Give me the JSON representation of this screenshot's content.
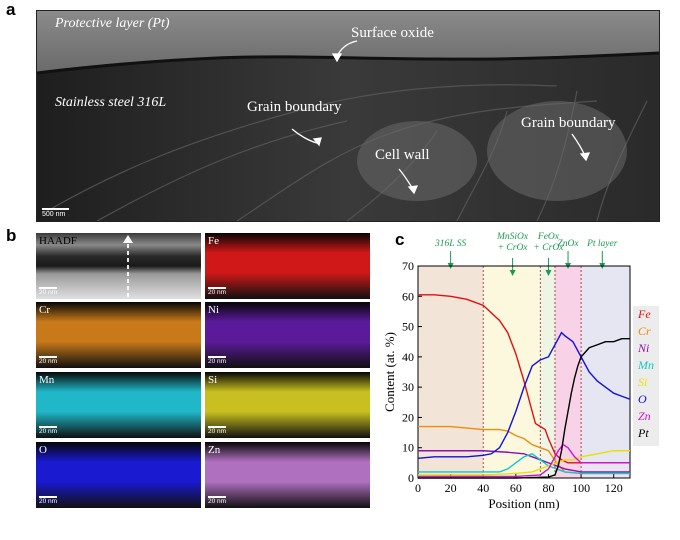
{
  "panel_a": {
    "letter": "a",
    "labels": {
      "protective": "Protective layer (Pt)",
      "surface_oxide": "Surface oxide",
      "steel": "Stainless steel 316L",
      "grain_boundary_1": "Grain boundary",
      "grain_boundary_2": "Grain boundary",
      "cell_wall": "Cell wall"
    },
    "scale_bar": "500 nm"
  },
  "panel_b": {
    "letter": "b",
    "tiles": [
      {
        "label": "HAADF",
        "scale": "20 nm",
        "color": "#bdbdbd"
      },
      {
        "label": "Fe",
        "scale": "20 nm",
        "color": "#d01818"
      },
      {
        "label": "Cr",
        "scale": "20 nm",
        "color": "#c87a1a"
      },
      {
        "label": "Ni",
        "scale": "20 nm",
        "color": "#5a1a9a"
      },
      {
        "label": "Mn",
        "scale": "20 nm",
        "color": "#20b8c8"
      },
      {
        "label": "Si",
        "scale": "20 nm",
        "color": "#c8c020"
      },
      {
        "label": "O",
        "scale": "20 nm",
        "color": "#1a1ad0"
      },
      {
        "label": "Zn",
        "scale": "20 nm",
        "color": "#b070c0"
      }
    ]
  },
  "panel_c": {
    "letter": "c",
    "region_labels": [
      "316L SS",
      "MnSiOx + CrOx",
      "FeOx + CrOx",
      "ZnOx",
      "Pt layer"
    ]
  },
  "chart_data": {
    "type": "line",
    "xlabel": "Position (nm)",
    "ylabel": "Content (at. %)",
    "xlim": [
      0,
      130
    ],
    "ylim": [
      0,
      70
    ],
    "xticks": [
      0,
      20,
      40,
      60,
      80,
      100,
      120
    ],
    "yticks": [
      0,
      10,
      20,
      30,
      40,
      50,
      60,
      70
    ],
    "regions": [
      {
        "label": "316L SS",
        "x": [
          0,
          40
        ],
        "color": "#f3e4d8"
      },
      {
        "label": "MnSiOx + CrOx",
        "x": [
          40,
          75
        ],
        "color": "#fbf8de"
      },
      {
        "label": "FeOx + CrOx",
        "x": [
          75,
          84
        ],
        "color": "#eef5e4"
      },
      {
        "label": "ZnOx",
        "x": [
          84,
          100
        ],
        "color": "#f8d2e6"
      },
      {
        "label": "Pt layer",
        "x": [
          100,
          130
        ],
        "color": "#e6e6f2"
      }
    ],
    "legend_position": "right",
    "series": [
      {
        "name": "Fe",
        "color": "#e01010",
        "x": [
          0,
          10,
          20,
          30,
          40,
          50,
          55,
          60,
          65,
          70,
          72,
          75,
          78,
          80,
          84,
          88,
          92,
          96,
          100,
          110,
          120,
          130
        ],
        "y": [
          60.5,
          60.5,
          60,
          59,
          57,
          52,
          48,
          41,
          32,
          22,
          18,
          17,
          16,
          13,
          8,
          6,
          5,
          5,
          5,
          5,
          5,
          5
        ]
      },
      {
        "name": "Cr",
        "color": "#f08a10",
        "x": [
          0,
          10,
          20,
          30,
          40,
          50,
          55,
          60,
          65,
          70,
          75,
          80,
          85,
          90,
          100,
          110,
          120,
          130
        ],
        "y": [
          17,
          17,
          17,
          16.5,
          16,
          16,
          15.5,
          14,
          13,
          11,
          10,
          9,
          5,
          2,
          1.5,
          1.5,
          1.5,
          1.5
        ]
      },
      {
        "name": "Ni",
        "color": "#8a10b0",
        "x": [
          0,
          20,
          40,
          55,
          65,
          70,
          75,
          80,
          85,
          90,
          100,
          110,
          120,
          130
        ],
        "y": [
          9,
          9,
          9,
          8.5,
          8,
          7,
          6,
          5,
          4,
          3,
          2,
          2,
          2,
          2
        ]
      },
      {
        "name": "Mn",
        "color": "#10c8c8",
        "x": [
          0,
          20,
          40,
          50,
          55,
          60,
          65,
          70,
          75,
          80,
          85,
          90,
          100,
          110,
          120,
          130
        ],
        "y": [
          2,
          2,
          2,
          2,
          3,
          5,
          7,
          8,
          6,
          4,
          3,
          2,
          1.5,
          1.5,
          1.5,
          1.5
        ]
      },
      {
        "name": "Si",
        "color": "#e8e000",
        "x": [
          0,
          20,
          40,
          60,
          70,
          75,
          80,
          85,
          90,
          95,
          100,
          110,
          120,
          130
        ],
        "y": [
          1,
          1,
          1,
          1.5,
          2,
          3,
          4,
          5,
          6,
          6,
          7,
          8,
          9,
          9
        ]
      },
      {
        "name": "O",
        "color": "#1010e0",
        "x": [
          0,
          10,
          20,
          30,
          40,
          45,
          50,
          55,
          60,
          65,
          70,
          75,
          80,
          85,
          88,
          90,
          95,
          100,
          105,
          110,
          115,
          120,
          125,
          130
        ],
        "y": [
          6.5,
          7,
          7,
          7,
          7.5,
          8,
          10,
          15,
          22,
          30,
          37,
          39,
          40,
          45,
          48,
          47,
          45,
          40,
          35,
          32,
          30,
          28,
          27,
          26
        ]
      },
      {
        "name": "Zn",
        "color": "#d010d0",
        "x": [
          0,
          20,
          40,
          60,
          75,
          80,
          83,
          86,
          89,
          92,
          96,
          100,
          110,
          120,
          130
        ],
        "y": [
          0.5,
          0.5,
          0.5,
          0.5,
          1,
          3,
          6,
          9,
          11,
          10,
          7,
          5,
          5,
          5,
          5
        ]
      },
      {
        "name": "Pt",
        "color": "#000000",
        "x": [
          0,
          60,
          80,
          84,
          86,
          88,
          90,
          92,
          94,
          96,
          98,
          100,
          105,
          110,
          115,
          120,
          125,
          130
        ],
        "y": [
          0,
          0,
          0.3,
          1,
          4,
          9,
          16,
          22,
          28,
          33,
          37,
          40,
          43,
          44,
          45,
          45,
          46,
          46
        ]
      }
    ]
  }
}
